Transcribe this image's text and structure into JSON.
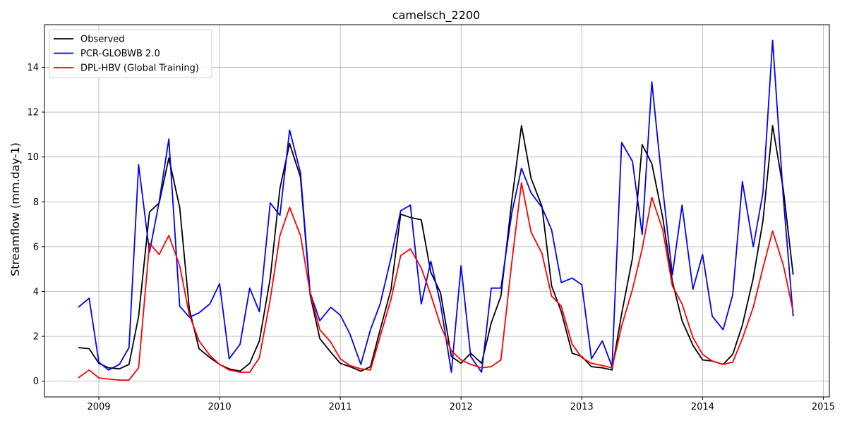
{
  "chart_data": {
    "type": "line",
    "title": "camelsch_2200",
    "xlabel": "",
    "ylabel": "Streamflow (mm.day-1)",
    "xlim": [
      2008.55,
      2015.05
    ],
    "ylim": [
      -0.7,
      15.9
    ],
    "x_ticks": [
      2009,
      2010,
      2011,
      2012,
      2013,
      2014,
      2015
    ],
    "y_ticks": [
      0,
      2,
      4,
      6,
      8,
      10,
      12,
      14
    ],
    "grid": true,
    "legend_position": "top-left",
    "x": [
      2008.83,
      2008.92,
      2009.0,
      2009.08,
      2009.17,
      2009.25,
      2009.33,
      2009.42,
      2009.5,
      2009.58,
      2009.67,
      2009.75,
      2009.83,
      2009.92,
      2010.0,
      2010.08,
      2010.17,
      2010.25,
      2010.33,
      2010.42,
      2010.5,
      2010.58,
      2010.67,
      2010.75,
      2010.83,
      2010.92,
      2011.0,
      2011.08,
      2011.17,
      2011.25,
      2011.33,
      2011.42,
      2011.5,
      2011.58,
      2011.67,
      2011.75,
      2011.83,
      2011.92,
      2012.0,
      2012.08,
      2012.17,
      2012.25,
      2012.33,
      2012.42,
      2012.5,
      2012.58,
      2012.67,
      2012.75,
      2012.83,
      2012.92,
      2013.0,
      2013.08,
      2013.17,
      2013.25,
      2013.33,
      2013.42,
      2013.5,
      2013.58,
      2013.67,
      2013.75,
      2013.83,
      2013.92,
      2014.0,
      2014.08,
      2014.17,
      2014.25,
      2014.33,
      2014.42,
      2014.5,
      2014.58,
      2014.67,
      2014.75
    ],
    "series": [
      {
        "name": "Observed",
        "color": "#000000",
        "values": [
          1.5,
          1.45,
          0.8,
          0.6,
          0.55,
          0.75,
          2.9,
          7.55,
          7.95,
          9.95,
          7.75,
          3.2,
          1.45,
          1.05,
          0.75,
          0.55,
          0.45,
          0.8,
          1.8,
          4.6,
          8.6,
          10.6,
          9.1,
          3.85,
          1.9,
          1.3,
          0.8,
          0.65,
          0.45,
          0.65,
          2.3,
          4.1,
          7.45,
          7.3,
          7.2,
          4.85,
          3.95,
          1.1,
          0.8,
          1.25,
          0.8,
          2.6,
          3.8,
          8.05,
          11.4,
          9.05,
          7.8,
          4.25,
          3.1,
          1.25,
          1.1,
          0.65,
          0.6,
          0.5,
          3.0,
          5.5,
          10.55,
          9.7,
          7.3,
          4.45,
          2.7,
          1.6,
          0.95,
          0.9,
          0.75,
          1.2,
          2.5,
          4.6,
          7.15,
          11.4,
          8.5,
          4.75
        ]
      },
      {
        "name": "PCR-GLOBWB 2.0",
        "color": "#0000ff",
        "values": [
          3.3,
          3.7,
          0.85,
          0.5,
          0.75,
          1.5,
          9.65,
          5.75,
          8.0,
          10.8,
          3.35,
          2.85,
          3.05,
          3.45,
          4.35,
          1.0,
          1.65,
          4.15,
          3.1,
          7.95,
          7.4,
          11.2,
          9.3,
          3.95,
          2.7,
          3.3,
          2.95,
          2.1,
          0.75,
          2.3,
          3.45,
          5.5,
          7.6,
          7.85,
          3.45,
          5.35,
          3.45,
          0.4,
          5.15,
          1.1,
          0.4,
          4.15,
          4.15,
          7.5,
          9.5,
          8.4,
          7.75,
          6.75,
          4.4,
          4.6,
          4.3,
          1.0,
          1.8,
          0.65,
          10.65,
          9.8,
          6.55,
          13.35,
          8.6,
          4.75,
          7.85,
          4.1,
          5.65,
          2.9,
          2.3,
          3.85,
          8.9,
          6.0,
          8.4,
          15.2,
          8.1,
          2.9
        ]
      },
      {
        "name": "DPL-HBV (Global Training)",
        "color": "#ff0000",
        "values": [
          0.15,
          0.5,
          0.15,
          0.1,
          0.05,
          0.05,
          0.6,
          6.15,
          5.65,
          6.5,
          5.15,
          2.95,
          1.8,
          1.15,
          0.75,
          0.5,
          0.4,
          0.4,
          1.05,
          3.65,
          6.5,
          7.75,
          6.5,
          3.95,
          2.3,
          1.75,
          1.0,
          0.7,
          0.55,
          0.5,
          2.0,
          3.65,
          5.6,
          5.9,
          5.05,
          3.85,
          2.5,
          1.35,
          0.95,
          0.75,
          0.6,
          0.65,
          0.95,
          5.3,
          8.85,
          6.65,
          5.7,
          3.8,
          3.35,
          1.65,
          1.05,
          0.8,
          0.7,
          0.6,
          2.45,
          4.1,
          5.9,
          8.2,
          6.75,
          4.25,
          3.45,
          1.95,
          1.2,
          0.9,
          0.75,
          0.85,
          1.9,
          3.3,
          5.05,
          6.7,
          5.15,
          3.1
        ]
      }
    ]
  }
}
